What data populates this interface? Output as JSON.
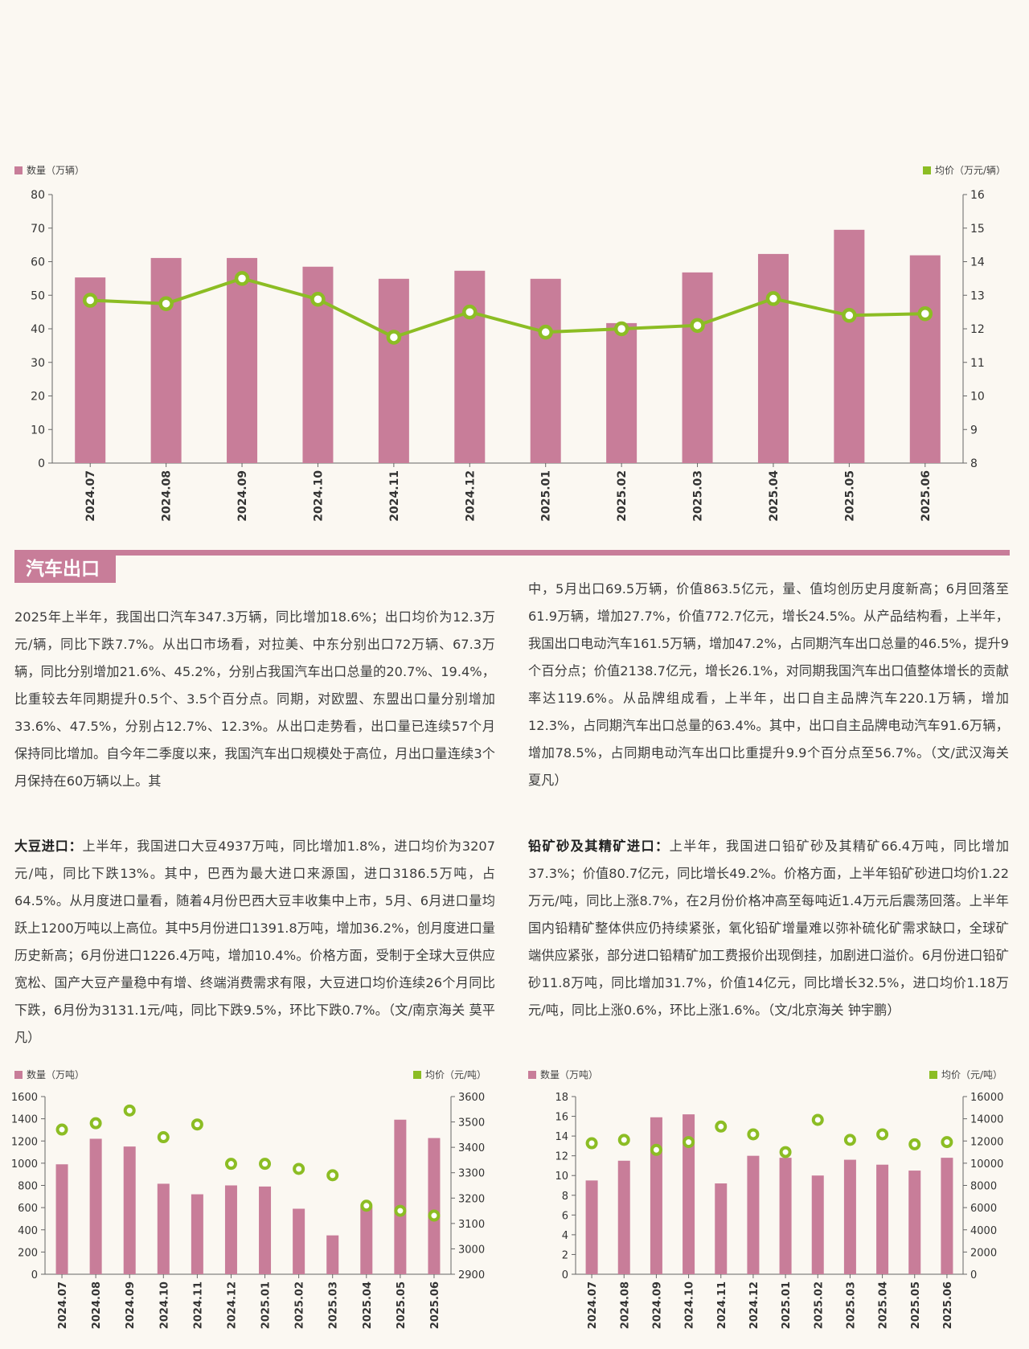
{
  "colors": {
    "bar": "#c87d99",
    "line": "#8cbd24",
    "axis": "#666666",
    "accent": "#c87d99"
  },
  "section": {
    "tag": "汽车出口"
  },
  "text": {
    "car_left": "2025年上半年，我国出口汽车347.3万辆，同比增加18.6%；出口均价为12.3万元/辆，同比下跌7.7%。从出口市场看，对拉美、中东分别出口72万辆、67.3万辆，同比分别增加21.6%、45.2%，分别占我国汽车出口总量的20.7%、19.4%，比重较去年同期提升0.5个、3.5个百分点。同期，对欧盟、东盟出口量分别增加33.6%、47.5%，分别占12.7%、12.3%。从出口走势看，出口量已连续57个月保持同比增加。自今年二季度以来，我国汽车出口规模处于高位，月出口量连续3个月保持在60万辆以上。其",
    "car_right": "中，5月出口69.5万辆，价值863.5亿元，量、值均创历史月度新高；6月回落至61.9万辆，增加27.7%，价值772.7亿元，增长24.5%。从产品结构看，上半年，我国出口电动汽车161.5万辆，增加47.2%，占同期汽车出口总量的46.5%，提升9个百分点；价值2138.7亿元，增长26.1%，对同期我国汽车出口值整体增长的贡献率达119.6%。从品牌组成看，上半年，出口自主品牌汽车220.1万辆，增加12.3%，占同期汽车出口总量的63.4%。其中，出口自主品牌电动汽车91.6万辆，增加78.5%，占同期电动汽车出口比重提升9.9个百分点至56.7%。（文/武汉海关 夏凡）",
    "soy_title": "大豆进口：",
    "soy_body": "上半年，我国进口大豆4937万吨，同比增加1.8%，进口均价为3207元/吨，同比下跌13%。其中，巴西为最大进口来源国，进口3186.5万吨，占64.5%。从月度进口量看，随着4月份巴西大豆丰收集中上市，5月、6月进口量均跃上1200万吨以上高位。其中5月份进口1391.8万吨，增加36.2%，创月度进口量历史新高；6月份进口1226.4万吨，增加10.4%。价格方面，受制于全球大豆供应宽松、国产大豆产量稳中有增、终端消费需求有限，大豆进口均价连续26个月同比下跌，6月份为3131.1元/吨，同比下跌9.5%，环比下跌0.7%。（文/南京海关 莫平凡）",
    "lead_title": "铅矿砂及其精矿进口：",
    "lead_body": "上半年，我国进口铅矿砂及其精矿66.4万吨，同比增加37.3%；价值80.7亿元，同比增长49.2%。价格方面，上半年铅矿砂进口均价1.22万元/吨，同比上涨8.7%，在2月份价格冲高至每吨近1.4万元后震荡回落。上半年国内铅精矿整体供应仍持续紧张，氧化铅矿增量难以弥补硫化矿需求缺口，全球矿端供应紧张，部分进口铅精矿加工费报价出现倒挂，加剧进口溢价。6月份进口铅矿砂11.8万吨，同比增加31.7%，价值14亿元，同比增长32.5%，进口均价1.18万元/吨，同比上涨0.6%，环比上涨1.6%。（文/北京海关 钟宇鹏）"
  },
  "chart_data": [
    {
      "type": "bar+line",
      "legend_left": "数量（万辆）",
      "legend_right": "均价（万元/辆）",
      "categories": [
        "2024.07",
        "2024.08",
        "2024.09",
        "2024.10",
        "2024.11",
        "2024.12",
        "2025.01",
        "2025.02",
        "2025.03",
        "2025.04",
        "2025.05",
        "2025.06"
      ],
      "bars": [
        55.3,
        61.1,
        61.1,
        58.5,
        54.9,
        57.3,
        54.9,
        41.7,
        56.8,
        62.3,
        69.5,
        61.9
      ],
      "line": [
        12.85,
        12.75,
        13.5,
        12.88,
        11.75,
        12.5,
        11.9,
        12.0,
        12.1,
        12.9,
        12.4,
        12.45
      ],
      "yleft": [
        0,
        80
      ],
      "yright": [
        8,
        16
      ],
      "yleft_ticks": [
        "80",
        "70",
        "60",
        "50",
        "40",
        "30",
        "20",
        "10",
        "0"
      ],
      "yright_ticks": [
        "16",
        "15",
        "14",
        "13",
        "12",
        "11",
        "10",
        "9",
        "8"
      ]
    },
    {
      "type": "bar+scatter",
      "legend_left": "数量（万吨）",
      "legend_right": "均价（元/吨）",
      "categories": [
        "2024.07",
        "2024.08",
        "2024.09",
        "2024.10",
        "2024.11",
        "2024.12",
        "2025.01",
        "2025.02",
        "2025.03",
        "2025.04",
        "2025.05",
        "2025.06"
      ],
      "bars": [
        990,
        1220,
        1150,
        815,
        720,
        800,
        790,
        590,
        350,
        610,
        1391.8,
        1226.4
      ],
      "line": [
        3470,
        3495,
        3545,
        3440,
        3490,
        3335,
        3335,
        3315,
        3290,
        3170,
        3150,
        3131.1
      ],
      "yleft": [
        0,
        1600
      ],
      "yright": [
        2900,
        3600
      ],
      "yleft_ticks": [
        "1600",
        "1400",
        "1200",
        "1000",
        "800",
        "600",
        "400",
        "200",
        "0"
      ],
      "yright_ticks": [
        "3600",
        "3500",
        "3400",
        "3300",
        "3200",
        "3100",
        "3000",
        "2900"
      ]
    },
    {
      "type": "bar+scatter",
      "legend_left": "数量（万吨）",
      "legend_right": "均价（元/吨）",
      "categories": [
        "2024.07",
        "2024.08",
        "2024.09",
        "2024.10",
        "2024.11",
        "2024.12",
        "2025.01",
        "2025.02",
        "2025.03",
        "2025.04",
        "2025.05",
        "2025.06"
      ],
      "bars": [
        9.5,
        11.5,
        15.9,
        16.2,
        9.2,
        12.0,
        11.8,
        10.0,
        11.6,
        11.1,
        10.5,
        11.8
      ],
      "line": [
        11800,
        12100,
        11200,
        11900,
        13300,
        12600,
        11000,
        13900,
        12100,
        12600,
        11700,
        11900
      ],
      "yleft": [
        0,
        18
      ],
      "yright": [
        0,
        16000
      ],
      "yleft_ticks": [
        "18",
        "16",
        "14",
        "12",
        "10",
        "8",
        "6",
        "4",
        "2",
        "0"
      ],
      "yright_ticks": [
        "16000",
        "14000",
        "12000",
        "10000",
        "8000",
        "6000",
        "4000",
        "2000",
        "0"
      ]
    }
  ]
}
